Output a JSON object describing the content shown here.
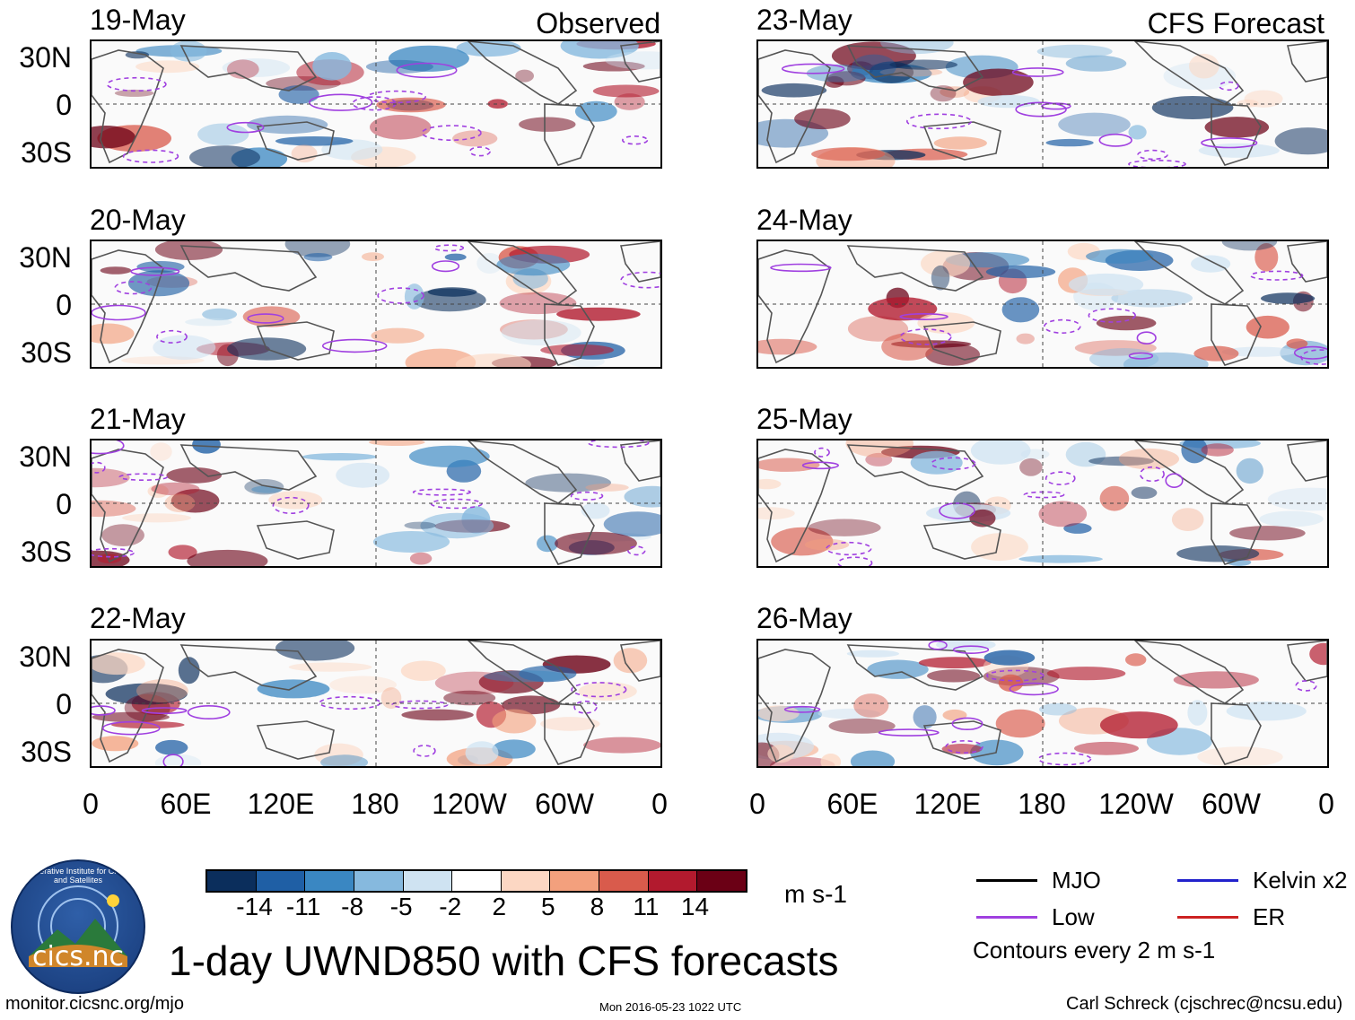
{
  "header": {
    "left_tag": "Observed",
    "right_tag": "CFS Forecast"
  },
  "panels": {
    "left": [
      {
        "date": "19-May"
      },
      {
        "date": "20-May"
      },
      {
        "date": "21-May"
      },
      {
        "date": "22-May"
      }
    ],
    "right": [
      {
        "date": "23-May"
      },
      {
        "date": "24-May"
      },
      {
        "date": "25-May"
      },
      {
        "date": "26-May"
      }
    ]
  },
  "axes": {
    "lat_labels": [
      "30N",
      "0",
      "30S"
    ],
    "lon_labels": [
      "0",
      "60E",
      "120E",
      "180",
      "120W",
      "60W",
      "0"
    ]
  },
  "colorbar": {
    "unit": "m s-1",
    "ticks": [
      "-14",
      "-11",
      "-8",
      "-5",
      "-2",
      "2",
      "5",
      "8",
      "11",
      "14"
    ],
    "colors": [
      "#0b2e5c",
      "#1f5fa5",
      "#3a87c2",
      "#86b9de",
      "#cfe3f2",
      "#ffffff",
      "#fcd7c3",
      "#f3a07d",
      "#d95b4c",
      "#b21a2e",
      "#6b0015"
    ]
  },
  "legend": {
    "items": [
      {
        "label": "MJO",
        "color": "#000000"
      },
      {
        "label": "Kelvin x2",
        "color": "#2222cc"
      },
      {
        "label": "Low",
        "color": "#a040e0"
      },
      {
        "label": "ER",
        "color": "#cc2222"
      }
    ],
    "note": "Contours every 2 m s-1"
  },
  "logo": {
    "ring_text": "Cooperative Institute for Climate and Satellites",
    "text": "cics.nc"
  },
  "footer": {
    "title": "1-day UWND850 with CFS forecasts",
    "url": "monitor.cicsnc.org/mjo",
    "timestamp": "Mon 2016-05-23 1022 UTC",
    "author": "Carl Schreck (cjschrec@ncsu.edu)"
  }
}
